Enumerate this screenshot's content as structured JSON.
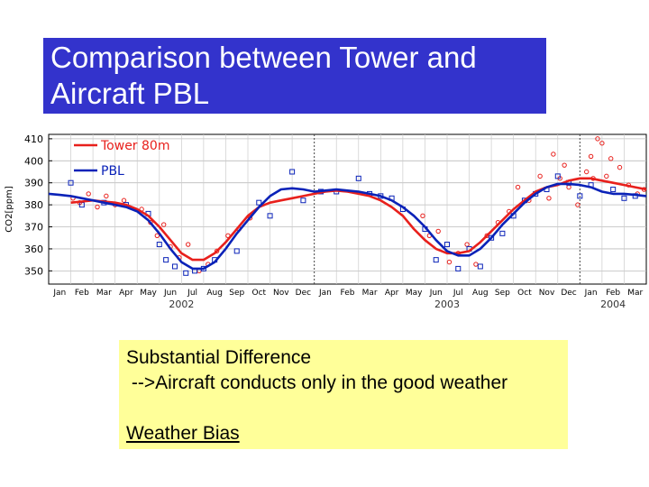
{
  "title": {
    "line1": "Comparison between Tower and",
    "line2": "Aircraft PBL"
  },
  "notes": {
    "line1": "Substantial Difference",
    "line2": " -->Aircraft conducts only in the good weather",
    "line3": "",
    "line4": "Weather Bias"
  },
  "colors": {
    "title_bg": "#3333cc",
    "note_bg": "#ffff99",
    "tower": "#e8201c",
    "pbl": "#0a22b8"
  },
  "chart_data": {
    "type": "line",
    "ylabel": "CO2[ppm]",
    "ylim": [
      344,
      412
    ],
    "yticks": [
      350,
      360,
      370,
      380,
      390,
      400,
      410
    ],
    "xlim": [
      0,
      27
    ],
    "month_ticks": [
      "Jan",
      "Feb",
      "Mar",
      "Apr",
      "May",
      "Jun",
      "Jul",
      "Aug",
      "Sep",
      "Oct",
      "Nov",
      "Dec",
      "Jan",
      "Feb",
      "Mar",
      "Apr",
      "May",
      "Jun",
      "Jul",
      "Aug",
      "Sep",
      "Oct",
      "Nov",
      "Dec",
      "Jan",
      "Feb",
      "Mar"
    ],
    "year_labels": [
      {
        "label": "2002",
        "x": 6.0
      },
      {
        "label": "2003",
        "x": 18.0
      },
      {
        "label": "2004",
        "x": 25.5
      }
    ],
    "year_boundaries": [
      12,
      24
    ],
    "grid": true,
    "legend": "top-left",
    "series": [
      {
        "name": "Tower 80m",
        "style": "curve",
        "x": [
          1.0,
          1.5,
          2.0,
          2.5,
          3.0,
          3.5,
          4.0,
          4.5,
          5.0,
          5.5,
          6.0,
          6.5,
          7.0,
          7.5,
          8.0,
          8.5,
          9.0,
          9.5,
          10.0,
          10.5,
          11.0,
          11.5,
          12.0,
          12.5,
          13.0,
          13.5,
          14.0,
          14.5,
          15.0,
          15.5,
          16.0,
          16.5,
          17.0,
          17.5,
          18.0,
          18.5,
          19.0,
          19.5,
          20.0,
          20.5,
          21.0,
          21.5,
          22.0,
          22.5,
          23.0,
          23.5,
          24.0,
          24.5,
          25.0,
          25.5,
          26.0,
          26.5,
          27.0
        ],
        "y": [
          381,
          381.5,
          382,
          381.5,
          381,
          380,
          378,
          375,
          370,
          364,
          358,
          355,
          355,
          358,
          363,
          369,
          375,
          379,
          381,
          382,
          383,
          384,
          385,
          386,
          386.5,
          386,
          385,
          384,
          382,
          379,
          375,
          369,
          364,
          360,
          358,
          358,
          359,
          363,
          368,
          373,
          378,
          382,
          386,
          388,
          389,
          391,
          392,
          392,
          391,
          390,
          389,
          388,
          387
        ]
      },
      {
        "name": "PBL",
        "style": "curve",
        "x": [
          0.0,
          0.5,
          1.0,
          1.5,
          2.0,
          2.5,
          3.0,
          3.5,
          4.0,
          4.5,
          5.0,
          5.5,
          6.0,
          6.5,
          7.0,
          7.5,
          8.0,
          8.5,
          9.0,
          9.5,
          10.0,
          10.5,
          11.0,
          11.5,
          12.0,
          12.5,
          13.0,
          13.5,
          14.0,
          14.5,
          15.0,
          15.5,
          16.0,
          16.5,
          17.0,
          17.5,
          18.0,
          18.5,
          19.0,
          19.5,
          20.0,
          20.5,
          21.0,
          21.5,
          22.0,
          22.5,
          23.0,
          23.5,
          24.0,
          24.5,
          25.0,
          25.5,
          26.0,
          26.5,
          27.0
        ],
        "y": [
          385,
          384.5,
          384,
          383,
          382,
          381,
          380,
          379,
          377,
          373,
          367,
          360,
          354,
          351,
          351,
          354,
          360,
          367,
          373,
          379,
          384,
          387,
          387.5,
          387,
          386,
          386.5,
          387,
          386.5,
          386,
          385,
          384,
          382,
          379,
          375,
          370,
          364,
          359,
          357,
          357,
          360,
          365,
          371,
          376,
          381,
          385,
          388,
          389.5,
          389.5,
          389,
          388,
          386,
          385,
          385,
          384.5,
          384
        ]
      },
      {
        "name": "Aircraft samples",
        "style": "squares",
        "x": [
          1.0,
          1.5,
          2.5,
          3.5,
          4.5,
          5.0,
          5.3,
          5.7,
          6.2,
          6.6,
          7.0,
          7.5,
          8.5,
          9.5,
          10.0,
          11.0,
          11.5,
          12.3,
          13.0,
          14.0,
          14.5,
          15.0,
          15.5,
          16.0,
          17.0,
          17.5,
          18.0,
          18.5,
          19.0,
          19.5,
          20.0,
          20.5,
          21.0,
          21.5,
          22.0,
          22.5,
          23.0,
          23.5,
          24.0,
          24.5,
          25.5,
          26.0,
          26.5
        ],
        "y": [
          390,
          380,
          381,
          380,
          376,
          362,
          355,
          352,
          349,
          350,
          351,
          355,
          359,
          381,
          375,
          395,
          382,
          386,
          386,
          392,
          385,
          384,
          383,
          378,
          369,
          355,
          362,
          351,
          360,
          352,
          365,
          367,
          375,
          382,
          385,
          387,
          393,
          390,
          384,
          389,
          387,
          383,
          384
        ]
      },
      {
        "name": "Tower samples",
        "style": "dots",
        "x": [
          1.1,
          1.4,
          1.8,
          2.2,
          2.6,
          3.0,
          3.4,
          4.2,
          4.6,
          4.9,
          5.2,
          5.5,
          5.9,
          6.3,
          6.8,
          7.2,
          7.6,
          8.1,
          8.6,
          9.1,
          16.9,
          17.2,
          17.6,
          18.1,
          18.5,
          18.9,
          19.3,
          19.8,
          20.3,
          20.8,
          21.2,
          21.7,
          22.2,
          22.6,
          23.1,
          23.5,
          23.9,
          24.3,
          24.6,
          25.0,
          25.4,
          25.8,
          26.2,
          26.6,
          26.9,
          22.8,
          23.3,
          24.8,
          24.5,
          25.2
        ],
        "y": [
          383,
          381,
          385,
          379,
          384,
          380,
          382,
          378,
          372,
          366,
          371,
          361,
          356,
          362,
          350,
          353,
          359,
          366,
          369,
          374,
          375,
          366,
          368,
          354,
          358,
          362,
          353,
          366,
          372,
          377,
          388,
          382,
          393,
          383,
          392,
          388,
          380,
          395,
          392,
          408,
          401,
          397,
          389,
          385,
          387,
          403,
          398,
          410,
          402,
          393
        ]
      }
    ]
  }
}
